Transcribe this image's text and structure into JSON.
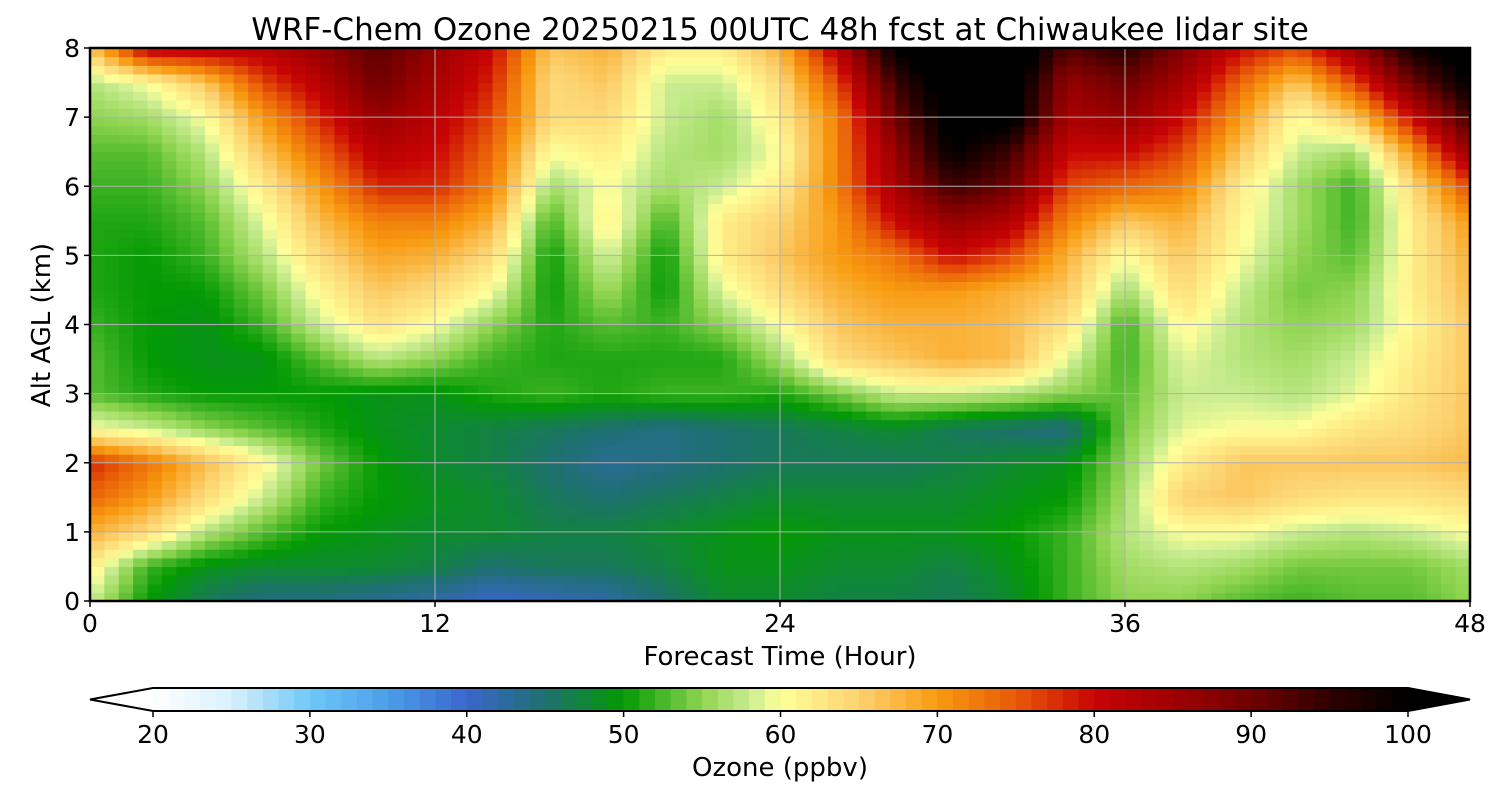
{
  "chart_data": {
    "type": "heatmap",
    "title": "WRF-Chem Ozone  20250215 00UTC 48h fcst at Chiwaukee lidar site",
    "xlabel": "Forecast Time (Hour)",
    "ylabel": "Alt AGL (km)",
    "xlim": [
      0,
      48
    ],
    "ylim": [
      0,
      8
    ],
    "xticks": [
      0,
      12,
      24,
      36,
      48
    ],
    "yticks": [
      0,
      1,
      2,
      3,
      4,
      5,
      6,
      7,
      8
    ],
    "grid": true,
    "x_hours": [
      0,
      2,
      4,
      6,
      8,
      10,
      12,
      14,
      16,
      18,
      20,
      22,
      24,
      26,
      28,
      30,
      32,
      34,
      36,
      38,
      40,
      42,
      44,
      46,
      48
    ],
    "y_km": [
      0,
      0.5,
      1,
      1.5,
      2,
      2.5,
      3,
      3.5,
      4,
      4.5,
      5,
      5.5,
      6,
      6.5,
      7,
      7.5,
      8
    ],
    "z_ppbv": [
      [
        58,
        50,
        46,
        44,
        44,
        43,
        42,
        40,
        41,
        42,
        45,
        48,
        48,
        47,
        47,
        46,
        48,
        52,
        55,
        55,
        53,
        52,
        53,
        53,
        55
      ],
      [
        62,
        52,
        49,
        48,
        48,
        48,
        47,
        45,
        46,
        46,
        47,
        49,
        49,
        48,
        48,
        47,
        49,
        52,
        56,
        57,
        56,
        54,
        54,
        54,
        56
      ],
      [
        68,
        64,
        57,
        53,
        50,
        49,
        48,
        48,
        47,
        47,
        48,
        49,
        50,
        49,
        49,
        49,
        50,
        52,
        57,
        60,
        60,
        58,
        57,
        58,
        60
      ],
      [
        74,
        70,
        64,
        58,
        52,
        50,
        49,
        48,
        46,
        45,
        46,
        47,
        48,
        48,
        48,
        48,
        49,
        50,
        56,
        65,
        66,
        64,
        63,
        63,
        64
      ],
      [
        78,
        73,
        67,
        61,
        54,
        50,
        48,
        47,
        45,
        43,
        44,
        45,
        46,
        46,
        46,
        47,
        48,
        49,
        55,
        62,
        66,
        66,
        66,
        66,
        67
      ],
      [
        60,
        58,
        55,
        53,
        51,
        49,
        48,
        47,
        46,
        45,
        44,
        45,
        46,
        47,
        48,
        46,
        45,
        44,
        54,
        59,
        60,
        60,
        63,
        64,
        66
      ],
      [
        53,
        51,
        50,
        50,
        50,
        49,
        49,
        51,
        52,
        51,
        52,
        52,
        51,
        54,
        58,
        58,
        57,
        55,
        53,
        58,
        58,
        57,
        59,
        63,
        66
      ],
      [
        53,
        50,
        49,
        49,
        53,
        57,
        55,
        52,
        51,
        51,
        51,
        51,
        56,
        64,
        66,
        68,
        67,
        59,
        52,
        59,
        57,
        56,
        58,
        62,
        66
      ],
      [
        52,
        50,
        49,
        52,
        58,
        63,
        60,
        55,
        51,
        53,
        52,
        55,
        60,
        66,
        68,
        68,
        67,
        63,
        52,
        61,
        57,
        55,
        56,
        61,
        66
      ],
      [
        51,
        50,
        50,
        54,
        61,
        66,
        64,
        60,
        50,
        56,
        50,
        59,
        64,
        68,
        70,
        70,
        68,
        66,
        56,
        64,
        58,
        54,
        55,
        62,
        67
      ],
      [
        51,
        50,
        52,
        57,
        64,
        69,
        68,
        64,
        50,
        59,
        50,
        62,
        66,
        70,
        73,
        80,
        76,
        68,
        60,
        66,
        60,
        55,
        53,
        62,
        68
      ],
      [
        51,
        51,
        53,
        59,
        67,
        72,
        72,
        68,
        52,
        62,
        52,
        62,
        65,
        70,
        80,
        86,
        83,
        72,
        66,
        68,
        61,
        56,
        52,
        62,
        70
      ],
      [
        52,
        52,
        55,
        62,
        70,
        78,
        78,
        72,
        56,
        60,
        56,
        58,
        62,
        72,
        84,
        94,
        90,
        76,
        74,
        72,
        62,
        56,
        52,
        64,
        76
      ],
      [
        53,
        53,
        57,
        66,
        74,
        82,
        80,
        74,
        60,
        62,
        57,
        56,
        60,
        72,
        86,
        100,
        94,
        80,
        80,
        76,
        66,
        58,
        56,
        70,
        86
      ],
      [
        55,
        56,
        60,
        70,
        78,
        86,
        82,
        76,
        64,
        64,
        58,
        56,
        62,
        72,
        90,
        102,
        102,
        84,
        86,
        80,
        70,
        60,
        66,
        80,
        94
      ],
      [
        57,
        60,
        66,
        76,
        82,
        90,
        84,
        78,
        64,
        66,
        58,
        58,
        64,
        76,
        94,
        104,
        104,
        86,
        90,
        84,
        74,
        66,
        76,
        90,
        100
      ],
      [
        66,
        82,
        82,
        82,
        86,
        92,
        86,
        80,
        66,
        68,
        62,
        62,
        68,
        82,
        100,
        106,
        106,
        92,
        96,
        88,
        80,
        76,
        86,
        98,
        104
      ]
    ],
    "colorbar": {
      "label": "Ozone  (ppbv)",
      "ticks": [
        20,
        30,
        40,
        50,
        60,
        70,
        80,
        90,
        100
      ],
      "min": 20,
      "max": 100,
      "extend": "both",
      "colors": [
        {
          "v": 20,
          "c": "#ffffff"
        },
        {
          "v": 25,
          "c": "#d8f0fc"
        },
        {
          "v": 30,
          "c": "#6ec8f8"
        },
        {
          "v": 35,
          "c": "#4a9ee8"
        },
        {
          "v": 40,
          "c": "#3a66cc"
        },
        {
          "v": 45,
          "c": "#1e7070"
        },
        {
          "v": 50,
          "c": "#039a03"
        },
        {
          "v": 55,
          "c": "#8fd450"
        },
        {
          "v": 58,
          "c": "#c8ec90"
        },
        {
          "v": 60,
          "c": "#ffff99"
        },
        {
          "v": 65,
          "c": "#fcd270"
        },
        {
          "v": 70,
          "c": "#f89a10"
        },
        {
          "v": 75,
          "c": "#e85a08"
        },
        {
          "v": 80,
          "c": "#c80404"
        },
        {
          "v": 85,
          "c": "#a00000"
        },
        {
          "v": 90,
          "c": "#700000"
        },
        {
          "v": 95,
          "c": "#300000"
        },
        {
          "v": 100,
          "c": "#000000"
        }
      ]
    }
  }
}
